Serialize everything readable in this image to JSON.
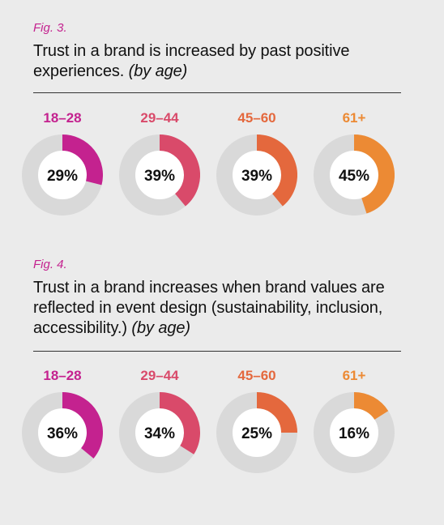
{
  "colors": {
    "track": "#d9d9d9",
    "age_colors": [
      "#c4228f",
      "#d94a6a",
      "#e4683d",
      "#ec8a34"
    ]
  },
  "figures": [
    {
      "label": "Fig. 3.",
      "title_main": "Trust in a brand is increased by past positive experiences.",
      "title_suffix": "(by age)"
    },
    {
      "label": "Fig. 4.",
      "title_main": "Trust in a brand increases when brand values are reflected in event design (sustainability, inclusion, accessibility.)",
      "title_suffix": "(by age)"
    }
  ],
  "chart_data": [
    {
      "type": "pie",
      "categories": [
        "18–28",
        "29–44",
        "45–60",
        "61+"
      ],
      "values": [
        29,
        39,
        39,
        45
      ],
      "labels": [
        "29%",
        "39%",
        "39%",
        "45%"
      ]
    },
    {
      "type": "pie",
      "categories": [
        "18–28",
        "29–44",
        "45–60",
        "61+"
      ],
      "values": [
        36,
        34,
        25,
        16
      ],
      "labels": [
        "36%",
        "34%",
        "25%",
        "16%"
      ]
    }
  ]
}
